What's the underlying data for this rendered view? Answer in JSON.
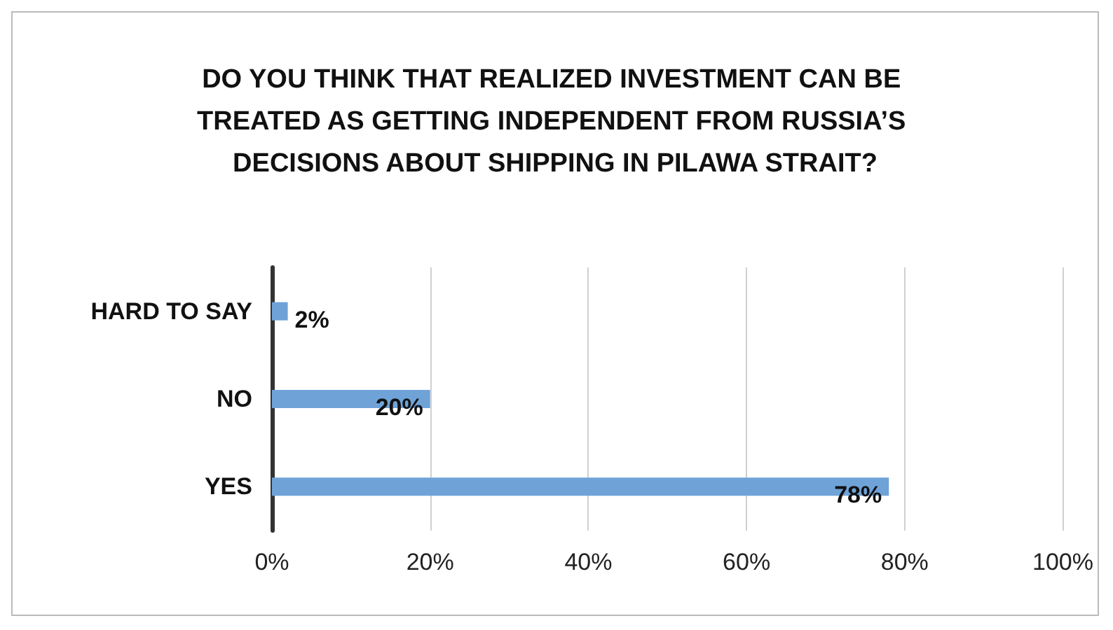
{
  "chart_data": {
    "type": "bar",
    "orientation": "horizontal",
    "title": "DO YOU THINK THAT REALIZED INVESTMENT CAN BE TREATED AS GETTING INDEPENDENT FROM RUSSIA’S DECISIONS ABOUT SHIPPING IN PILAWA STRAIT?",
    "categories": [
      "HARD TO SAY",
      "NO",
      "YES"
    ],
    "values": [
      2,
      20,
      78
    ],
    "value_labels": [
      "2%",
      "20%",
      "78%"
    ],
    "color": "#6fa3d8",
    "xlim": [
      0,
      100
    ],
    "xticks": [
      {
        "value": 0,
        "label": "0%"
      },
      {
        "value": 20,
        "label": "20%"
      },
      {
        "value": 40,
        "label": "40%"
      },
      {
        "value": 60,
        "label": "60%"
      },
      {
        "value": 80,
        "label": "80%"
      },
      {
        "value": 100,
        "label": "100%"
      }
    ],
    "grid": "x"
  }
}
